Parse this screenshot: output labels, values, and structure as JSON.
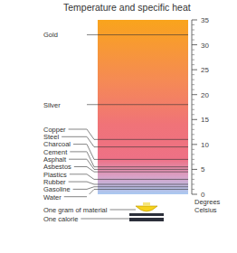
{
  "chart_data": {
    "type": "thermometer",
    "title": "Temperature and specific heat",
    "categories": [
      "Gold",
      "Silver",
      "Copper",
      "Steel",
      "Charcoal",
      "Cement",
      "Asphalt",
      "Asbestos",
      "Plastics",
      "Rubber",
      "Gasoline",
      "Water"
    ],
    "values": [
      32,
      18,
      11,
      9.5,
      7,
      5.5,
      5,
      4.5,
      3,
      2,
      1.5,
      1
    ],
    "ylim": [
      0,
      35
    ],
    "yticks": [
      0,
      5,
      10,
      15,
      20,
      25,
      30,
      35
    ],
    "y_label": "Degrees Celsius",
    "annotations": [
      "One gram of material",
      "One calorie"
    ]
  }
}
